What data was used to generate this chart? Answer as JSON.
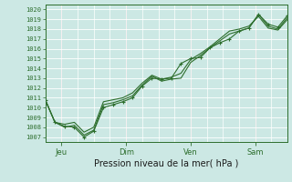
{
  "title": "Pression niveau de la mer( hPa )",
  "ylabel_values": [
    1007,
    1008,
    1009,
    1010,
    1011,
    1012,
    1013,
    1014,
    1015,
    1016,
    1017,
    1018,
    1019,
    1020
  ],
  "ylim": [
    1006.5,
    1020.5
  ],
  "x_ticks_pos": [
    0.5,
    2.5,
    4.5,
    6.5
  ],
  "x_tick_labels": [
    "Jeu",
    "Dim",
    "Ven",
    "Sam"
  ],
  "x_vlines": [
    0.5,
    2.5,
    4.5,
    6.5
  ],
  "background_color": "#cce8e4",
  "grid_color": "#ffffff",
  "line_color": "#2d6e2d",
  "vline_color": "#c0a0a0",
  "series": [
    [
      1010.8,
      1008.5,
      1008.1,
      1008.0,
      1007.0,
      1007.6,
      1010.0,
      1010.3,
      1010.6,
      1011.0,
      1012.2,
      1013.0,
      1012.9,
      1013.0,
      1014.5,
      1015.0,
      1015.1,
      1016.1,
      1016.6,
      1017.0,
      1017.8,
      1018.1,
      1019.5,
      1018.5,
      1018.2,
      1019.4
    ],
    [
      1010.8,
      1008.5,
      1008.0,
      1008.2,
      1007.2,
      1007.7,
      1010.3,
      1010.5,
      1010.8,
      1011.2,
      1012.3,
      1013.2,
      1012.7,
      1012.9,
      1013.0,
      1014.6,
      1015.3,
      1016.1,
      1016.8,
      1017.5,
      1017.8,
      1018.1,
      1019.5,
      1018.3,
      1018.0,
      1019.2
    ],
    [
      1010.8,
      1008.5,
      1008.3,
      1008.5,
      1007.5,
      1008.0,
      1010.6,
      1010.8,
      1011.0,
      1011.5,
      1012.5,
      1013.3,
      1012.9,
      1013.1,
      1013.5,
      1014.9,
      1015.5,
      1016.2,
      1017.0,
      1017.8,
      1018.0,
      1018.3,
      1019.3,
      1018.1,
      1017.9,
      1019.0
    ]
  ],
  "xlim": [
    0,
    7.5
  ],
  "n_points": 26
}
